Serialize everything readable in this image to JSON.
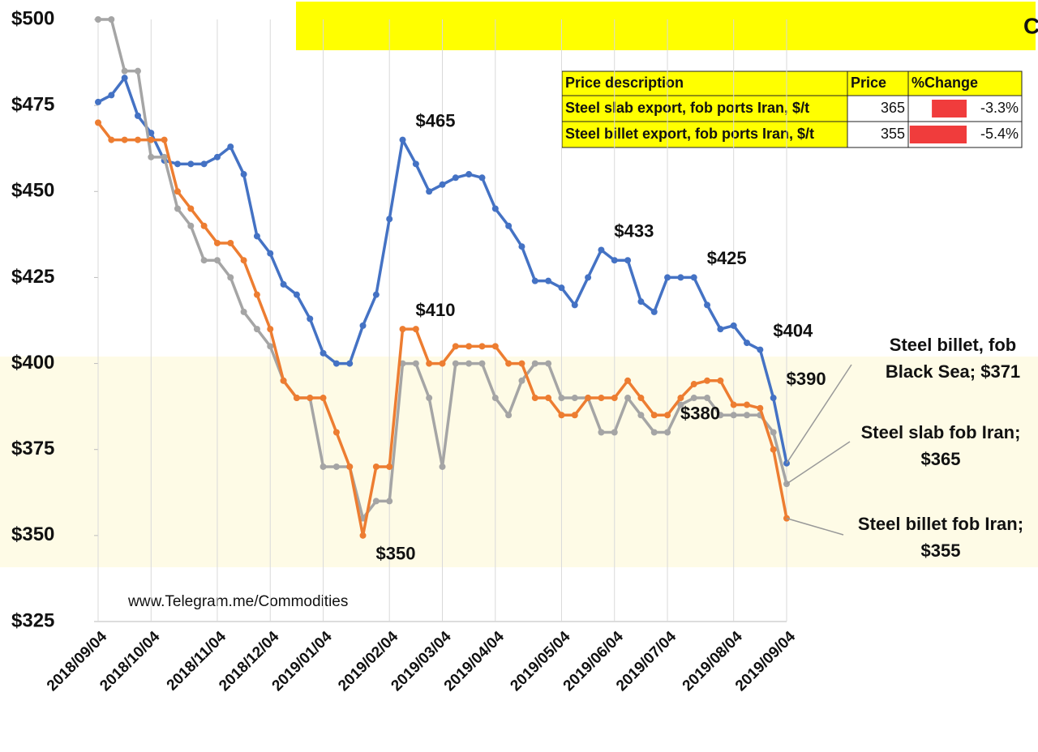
{
  "chart_data": {
    "type": "line",
    "title": "روند تغییرات قیمت فولاد صادراتی ایران در مقایسه با شاخص CIS",
    "source": "www.Telegram.me/Commodities",
    "categories": [
      "2018/09/04",
      null,
      null,
      null,
      "2018/10/04",
      null,
      null,
      null,
      null,
      "2018/11/04",
      null,
      null,
      null,
      "2018/12/04",
      null,
      null,
      null,
      "2019/01/04",
      null,
      null,
      null,
      null,
      "2019/02/04",
      null,
      null,
      null,
      "2019/03/04",
      null,
      null,
      null,
      "2019/04/04",
      null,
      null,
      null,
      null,
      "2019/05/04",
      null,
      null,
      null,
      "2019/06/04",
      null,
      null,
      null,
      "2019/07/04",
      null,
      null,
      null,
      null,
      "2019/08/04",
      null,
      null,
      null,
      "2019/09/04"
    ],
    "ylim": [
      325,
      500
    ],
    "yticks": [
      {
        "value": 325,
        "label": "$325"
      },
      {
        "value": 350,
        "label": "$350"
      },
      {
        "value": 375,
        "label": "$375"
      },
      {
        "value": 400,
        "label": "$400"
      },
      {
        "value": 425,
        "label": "$425"
      },
      {
        "value": 450,
        "label": "$450"
      },
      {
        "value": 475,
        "label": "$475"
      },
      {
        "value": 500,
        "label": "$500"
      }
    ],
    "grid": true,
    "series": [
      {
        "label_lines": [
          "Steel billet, fob",
          "Black Sea; $371"
        ],
        "color": "#4472c4",
        "values": [
          476,
          478,
          483,
          472,
          467,
          459,
          458,
          458,
          458,
          460,
          463,
          455,
          437,
          432,
          423,
          420,
          413,
          403,
          400,
          400,
          411,
          420,
          442,
          465,
          458,
          450,
          452,
          454,
          455,
          454,
          445,
          440,
          434,
          424,
          424,
          422,
          417,
          425,
          433,
          430,
          430,
          418,
          415,
          425,
          425,
          425,
          417,
          410,
          411,
          406,
          404,
          390,
          371
        ],
        "value_labels": [
          null,
          null,
          null,
          null,
          null,
          null,
          null,
          null,
          null,
          null,
          null,
          null,
          null,
          null,
          null,
          null,
          null,
          null,
          null,
          null,
          null,
          null,
          null,
          "$465",
          null,
          null,
          null,
          null,
          null,
          null,
          null,
          null,
          null,
          null,
          null,
          null,
          null,
          null,
          "$433",
          null,
          null,
          null,
          null,
          null,
          null,
          "$425",
          null,
          null,
          null,
          null,
          "$404",
          "$390",
          null
        ]
      },
      {
        "label_lines": [
          "Steel slab fob Iran;",
          "$365"
        ],
        "color": "#a5a5a5",
        "values": [
          500,
          500,
          485,
          485,
          460,
          460,
          445,
          440,
          430,
          430,
          425,
          415,
          410,
          405,
          395,
          390,
          390,
          370,
          370,
          370,
          355,
          360,
          360,
          400,
          400,
          390,
          370,
          400,
          400,
          400,
          390,
          385,
          395,
          400,
          400,
          390,
          390,
          390,
          380,
          380,
          390,
          385,
          380,
          380,
          388,
          390,
          390,
          385,
          385,
          385,
          385,
          380,
          365
        ],
        "value_labels": [
          null,
          null,
          null,
          null,
          null,
          null,
          null,
          null,
          null,
          null,
          null,
          null,
          null,
          null,
          null,
          null,
          null,
          null,
          null,
          null,
          null,
          null,
          null,
          null,
          null,
          null,
          null,
          null,
          null,
          null,
          null,
          null,
          null,
          null,
          null,
          null,
          null,
          null,
          null,
          null,
          null,
          null,
          null,
          "$380",
          null,
          null,
          null,
          null,
          null,
          null,
          null,
          null,
          null
        ]
      },
      {
        "label_lines": [
          "Steel billet fob Iran;",
          "$355"
        ],
        "color": "#ed7d31",
        "values": [
          470,
          465,
          465,
          465,
          465,
          465,
          450,
          445,
          440,
          435,
          435,
          430,
          420,
          410,
          395,
          390,
          390,
          390,
          380,
          370,
          350,
          370,
          370,
          410,
          410,
          400,
          400,
          405,
          405,
          405,
          405,
          400,
          400,
          390,
          390,
          385,
          385,
          390,
          390,
          390,
          395,
          390,
          385,
          385,
          390,
          394,
          395,
          395,
          388,
          388,
          387,
          375,
          355
        ],
        "value_labels": [
          null,
          null,
          null,
          null,
          null,
          null,
          null,
          null,
          null,
          null,
          null,
          null,
          null,
          null,
          null,
          null,
          null,
          null,
          null,
          null,
          "$350",
          null,
          null,
          "$410",
          null,
          null,
          null,
          null,
          null,
          null,
          null,
          null,
          null,
          null,
          null,
          null,
          null,
          null,
          null,
          null,
          null,
          null,
          null,
          null,
          null,
          null,
          null,
          null,
          null,
          null,
          null,
          null,
          null
        ]
      }
    ],
    "table": {
      "header": [
        "Price description",
        "Price",
        "%Change"
      ],
      "rows": [
        [
          "Steel slab export, fob ports Iran, $/t",
          365,
          "-3.3%"
        ],
        [
          "Steel billet export, fob ports Iran, $/t",
          355,
          "-5.4%"
        ]
      ]
    }
  }
}
